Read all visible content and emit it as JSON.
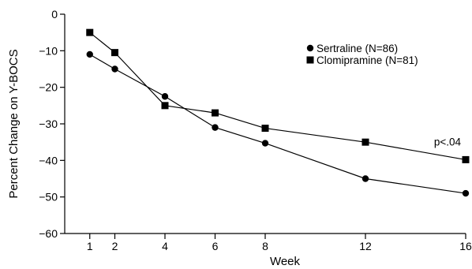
{
  "chart_data": {
    "type": "line",
    "title": "",
    "xlabel": "Week",
    "ylabel": "Percent Change on Y-BOCS",
    "xlim": [
      0,
      16
    ],
    "ylim": [
      -60,
      0
    ],
    "xticks": [
      1,
      2,
      4,
      6,
      8,
      12,
      16
    ],
    "xtick_labels": [
      "1",
      "2",
      "4",
      "6",
      "8",
      "12",
      "16"
    ],
    "yticks": [
      0,
      -10,
      -20,
      -30,
      -40,
      -50,
      -60
    ],
    "ytick_labels": [
      "0",
      "−10",
      "−20",
      "−30",
      "−40",
      "−50",
      "−60"
    ],
    "grid": false,
    "legend_position": "top-right",
    "series": [
      {
        "name": "Sertraline (N=86)",
        "marker": "circle",
        "color": "#000000",
        "x": [
          1,
          2,
          4,
          6,
          8,
          12,
          16
        ],
        "y": [
          -11,
          -15,
          -22.5,
          -31,
          -35.3,
          -45,
          -49
        ]
      },
      {
        "name": "Clomipramine (N=81)",
        "marker": "square",
        "color": "#000000",
        "x": [
          1,
          2,
          4,
          6,
          8,
          12,
          16
        ],
        "y": [
          -5,
          -10.5,
          -25,
          -27,
          -31.2,
          -35,
          -39.8
        ]
      }
    ],
    "annotations": [
      {
        "text": "p<.04",
        "x": 16,
        "y": -39.8
      }
    ]
  }
}
